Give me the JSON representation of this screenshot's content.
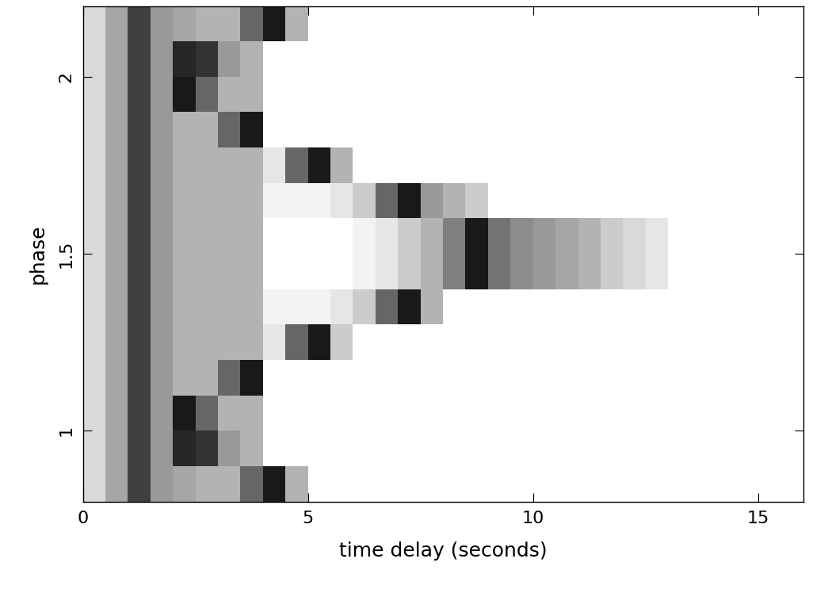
{
  "chart_data": {
    "type": "heatmap",
    "x_label": "time delay (seconds)",
    "y_label": "phase",
    "xlim": [
      0,
      16
    ],
    "ylim": [
      0.8,
      2.2
    ],
    "xticks": [
      0,
      5,
      10,
      15
    ],
    "yticks": [
      1,
      1.5,
      2
    ],
    "x_edges": [
      0,
      0.5,
      1,
      1.5,
      2,
      2.5,
      3,
      3.5,
      4,
      4.5,
      5,
      5.5,
      6,
      6.5,
      7,
      7.5,
      8,
      8.5,
      9,
      9.5,
      10,
      10.5,
      11,
      11.5,
      12,
      12.5,
      13,
      13.5,
      14,
      14.5,
      15,
      15.5,
      16
    ],
    "y_edges": [
      0.8,
      0.9,
      1.0,
      1.1,
      1.2,
      1.3,
      1.4,
      1.5,
      1.6,
      1.7,
      1.8,
      1.9,
      2.0,
      2.1,
      2.2
    ],
    "zlim": [
      0,
      1
    ],
    "cells": [
      [
        0.15,
        0.35,
        0.75,
        0.4,
        0.35,
        0.3,
        0.3,
        0.6,
        0.9,
        0.3,
        0,
        0,
        0,
        0,
        0,
        0,
        0,
        0,
        0,
        0,
        0,
        0,
        0,
        0,
        0,
        0,
        0,
        0,
        0,
        0,
        0,
        0
      ],
      [
        0.15,
        0.35,
        0.75,
        0.4,
        0.85,
        0.8,
        0.4,
        0.3,
        0,
        0,
        0,
        0,
        0,
        0,
        0,
        0,
        0,
        0,
        0,
        0,
        0,
        0,
        0,
        0,
        0,
        0,
        0,
        0,
        0,
        0,
        0,
        0
      ],
      [
        0.15,
        0.35,
        0.75,
        0.4,
        0.9,
        0.6,
        0.3,
        0.3,
        0,
        0,
        0,
        0,
        0,
        0,
        0,
        0,
        0,
        0,
        0,
        0,
        0,
        0,
        0,
        0,
        0,
        0,
        0,
        0,
        0,
        0,
        0,
        0
      ],
      [
        0.15,
        0.35,
        0.75,
        0.4,
        0.3,
        0.3,
        0.6,
        0.9,
        0,
        0,
        0,
        0,
        0,
        0,
        0,
        0,
        0,
        0,
        0,
        0,
        0,
        0,
        0,
        0,
        0,
        0,
        0,
        0,
        0,
        0,
        0,
        0
      ],
      [
        0.15,
        0.35,
        0.75,
        0.4,
        0.3,
        0.3,
        0.3,
        0.3,
        0.1,
        0.6,
        0.9,
        0.2,
        0,
        0,
        0,
        0,
        0,
        0,
        0,
        0,
        0,
        0,
        0,
        0,
        0,
        0,
        0,
        0,
        0,
        0,
        0,
        0
      ],
      [
        0.15,
        0.35,
        0.75,
        0.4,
        0.3,
        0.3,
        0.3,
        0.3,
        0.05,
        0.05,
        0.05,
        0.1,
        0.2,
        0.6,
        0.9,
        0.3,
        0,
        0,
        0,
        0,
        0,
        0,
        0,
        0,
        0,
        0,
        0,
        0,
        0,
        0,
        0,
        0
      ],
      [
        0.15,
        0.35,
        0.75,
        0.4,
        0.3,
        0.3,
        0.3,
        0.3,
        0,
        0,
        0,
        0,
        0.05,
        0.1,
        0.2,
        0.3,
        0.5,
        0.9,
        0.55,
        0.45,
        0.4,
        0.35,
        0.3,
        0.2,
        0.15,
        0.1,
        0,
        0,
        0,
        0,
        0,
        0
      ],
      [
        0.15,
        0.35,
        0.75,
        0.4,
        0.3,
        0.3,
        0.3,
        0.3,
        0,
        0,
        0,
        0,
        0.05,
        0.1,
        0.2,
        0.3,
        0.5,
        0.9,
        0.55,
        0.45,
        0.4,
        0.35,
        0.3,
        0.2,
        0.15,
        0.1,
        0,
        0,
        0,
        0,
        0,
        0
      ],
      [
        0.15,
        0.35,
        0.75,
        0.4,
        0.3,
        0.3,
        0.3,
        0.3,
        0.05,
        0.05,
        0.05,
        0.1,
        0.2,
        0.6,
        0.9,
        0.4,
        0.3,
        0.2,
        0,
        0,
        0,
        0,
        0,
        0,
        0,
        0,
        0,
        0,
        0,
        0,
        0,
        0
      ],
      [
        0.15,
        0.35,
        0.75,
        0.4,
        0.3,
        0.3,
        0.3,
        0.3,
        0.1,
        0.6,
        0.9,
        0.3,
        0,
        0,
        0,
        0,
        0,
        0,
        0,
        0,
        0,
        0,
        0,
        0,
        0,
        0,
        0,
        0,
        0,
        0,
        0,
        0
      ],
      [
        0.15,
        0.35,
        0.75,
        0.4,
        0.3,
        0.3,
        0.6,
        0.9,
        0,
        0,
        0,
        0,
        0,
        0,
        0,
        0,
        0,
        0,
        0,
        0,
        0,
        0,
        0,
        0,
        0,
        0,
        0,
        0,
        0,
        0,
        0,
        0
      ],
      [
        0.15,
        0.35,
        0.75,
        0.4,
        0.9,
        0.6,
        0.3,
        0.3,
        0,
        0,
        0,
        0,
        0,
        0,
        0,
        0,
        0,
        0,
        0,
        0,
        0,
        0,
        0,
        0,
        0,
        0,
        0,
        0,
        0,
        0,
        0,
        0
      ],
      [
        0.15,
        0.35,
        0.75,
        0.4,
        0.85,
        0.8,
        0.4,
        0.3,
        0,
        0,
        0,
        0,
        0,
        0,
        0,
        0,
        0,
        0,
        0,
        0,
        0,
        0,
        0,
        0,
        0,
        0,
        0,
        0,
        0,
        0,
        0,
        0
      ],
      [
        0.15,
        0.35,
        0.75,
        0.4,
        0.35,
        0.3,
        0.3,
        0.6,
        0.9,
        0.3,
        0,
        0,
        0,
        0,
        0,
        0,
        0,
        0,
        0,
        0,
        0,
        0,
        0,
        0,
        0,
        0,
        0,
        0,
        0,
        0,
        0,
        0
      ]
    ]
  }
}
